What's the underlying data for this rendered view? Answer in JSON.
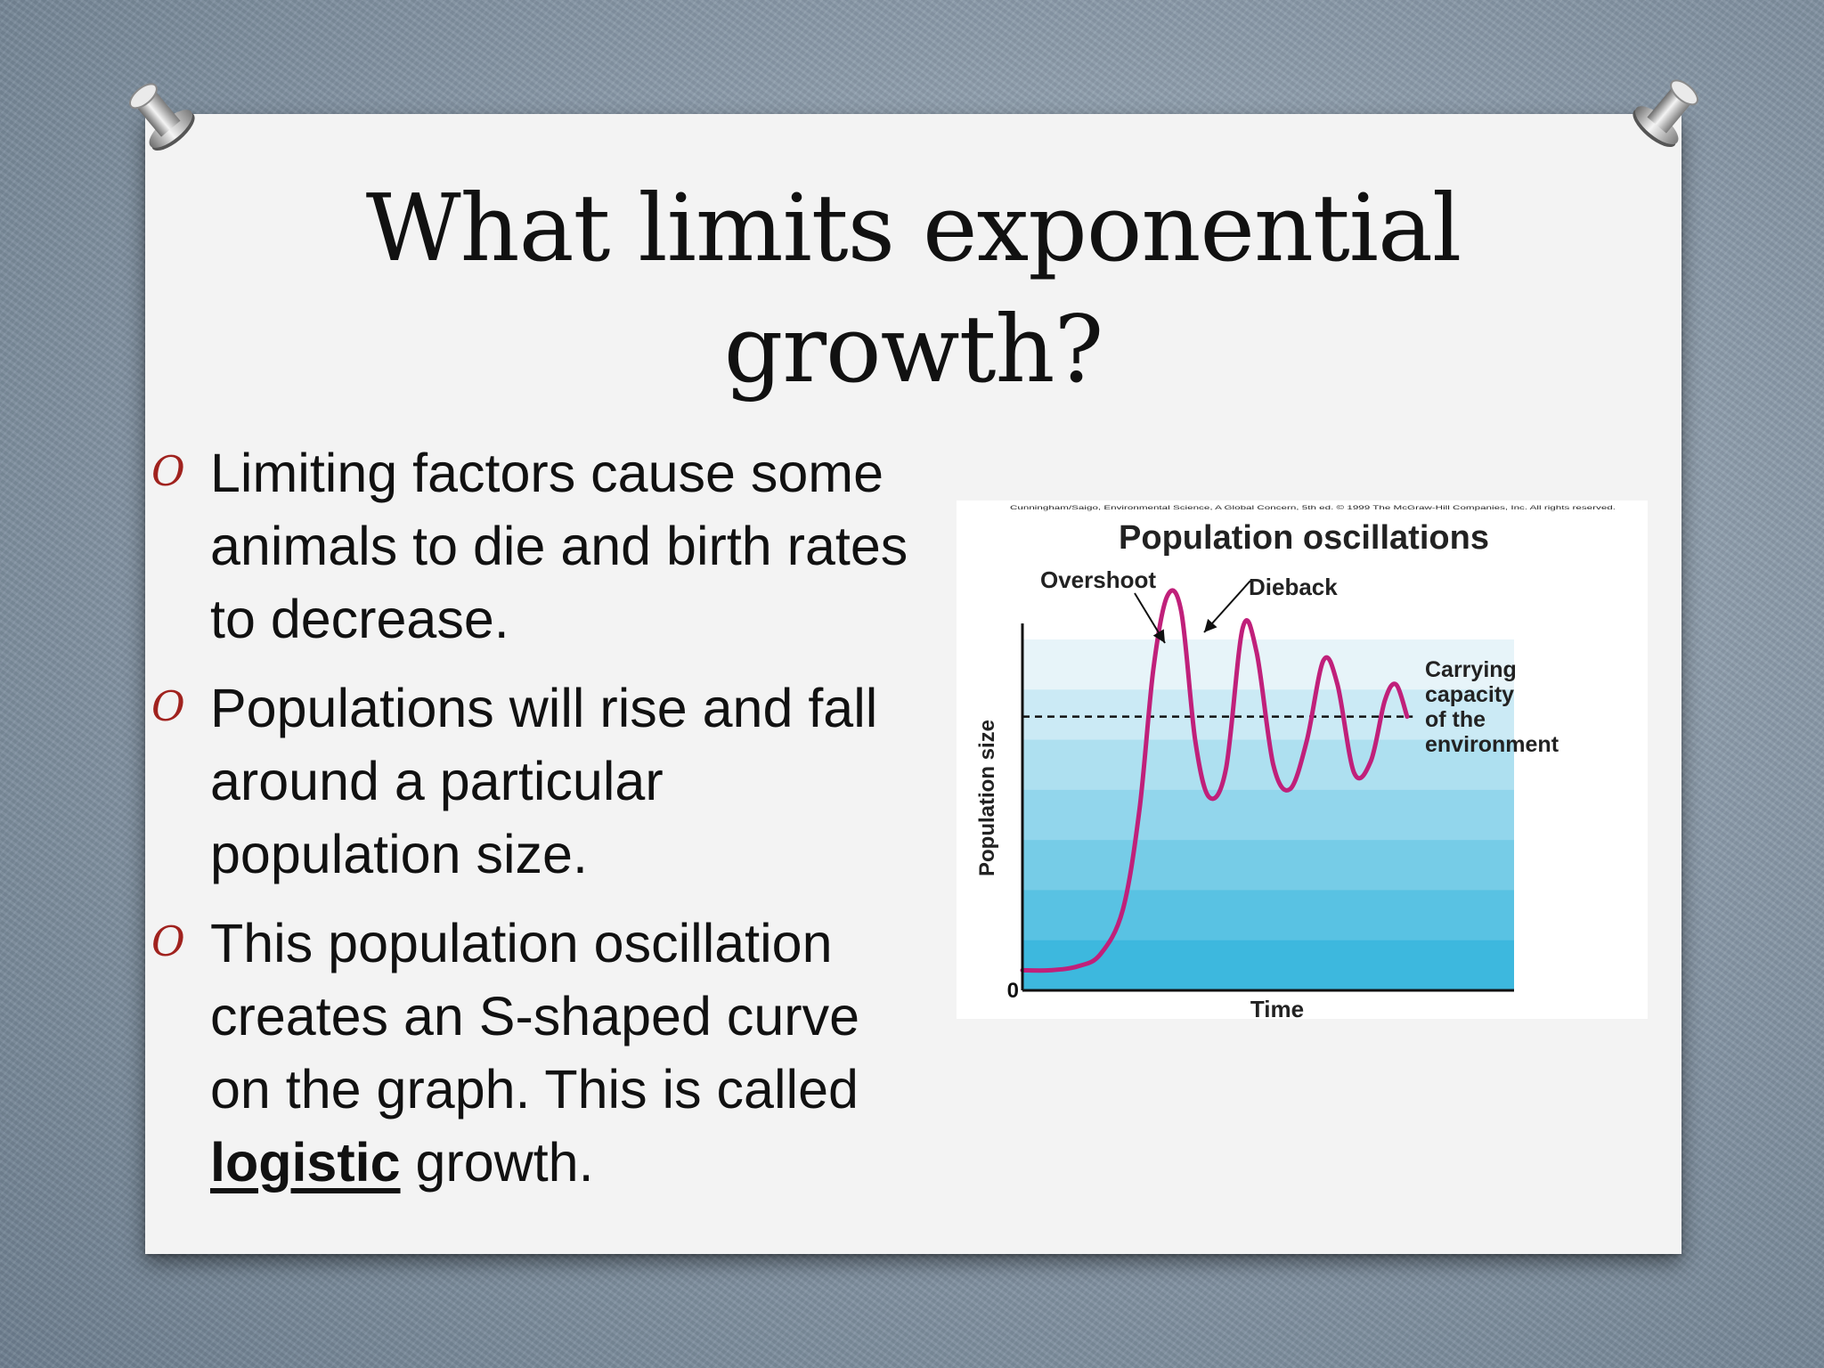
{
  "slide": {
    "title_line1": "What limits exponential",
    "title_line2": "growth?",
    "bullets": [
      {
        "text": "Limiting factors cause some animals to die and birth rates to decrease."
      },
      {
        "text": "Populations will rise and fall around a particular population size."
      },
      {
        "text_before": "This population oscillation creates an S-shaped curve on the graph.  This is called ",
        "emphasis": "logistic",
        "text_after": " growth."
      }
    ],
    "bullet_glyph": "O",
    "colors": {
      "bullet": "#a0221e",
      "curve": "#c0207a",
      "band_dark": "#3fb9df",
      "band_light": "#e4f3f9"
    }
  },
  "chart_data": {
    "type": "line",
    "title": "Population oscillations",
    "credit": "Cunningham/Saigo, Environmental Science, A Global Concern, 5th ed. © 1999 The McGraw-Hill Companies, Inc. All rights reserved.",
    "xlabel": "Time",
    "ylabel": "Population size",
    "y_origin_label": "0",
    "carrying_capacity": {
      "label_lines": [
        "Carrying",
        "capacity",
        "of the",
        "environment"
      ],
      "value": 0.68
    },
    "annotations": [
      {
        "label": "Overshoot",
        "x": 0.26
      },
      {
        "label": "Dieback",
        "x": 0.33
      }
    ],
    "xlim": [
      0,
      1
    ],
    "ylim": [
      0,
      1
    ],
    "series": [
      {
        "values": [
          [
            0.0,
            0.05
          ],
          [
            0.05,
            0.05
          ],
          [
            0.1,
            0.06
          ],
          [
            0.14,
            0.09
          ],
          [
            0.18,
            0.2
          ],
          [
            0.21,
            0.45
          ],
          [
            0.235,
            0.8
          ],
          [
            0.26,
            0.98
          ],
          [
            0.285,
            0.94
          ],
          [
            0.31,
            0.62
          ],
          [
            0.335,
            0.48
          ],
          [
            0.365,
            0.55
          ],
          [
            0.395,
            0.9
          ],
          [
            0.42,
            0.84
          ],
          [
            0.45,
            0.56
          ],
          [
            0.48,
            0.5
          ],
          [
            0.51,
            0.62
          ],
          [
            0.54,
            0.82
          ],
          [
            0.565,
            0.76
          ],
          [
            0.595,
            0.54
          ],
          [
            0.625,
            0.57
          ],
          [
            0.65,
            0.72
          ],
          [
            0.67,
            0.76
          ],
          [
            0.69,
            0.68
          ]
        ]
      }
    ]
  }
}
